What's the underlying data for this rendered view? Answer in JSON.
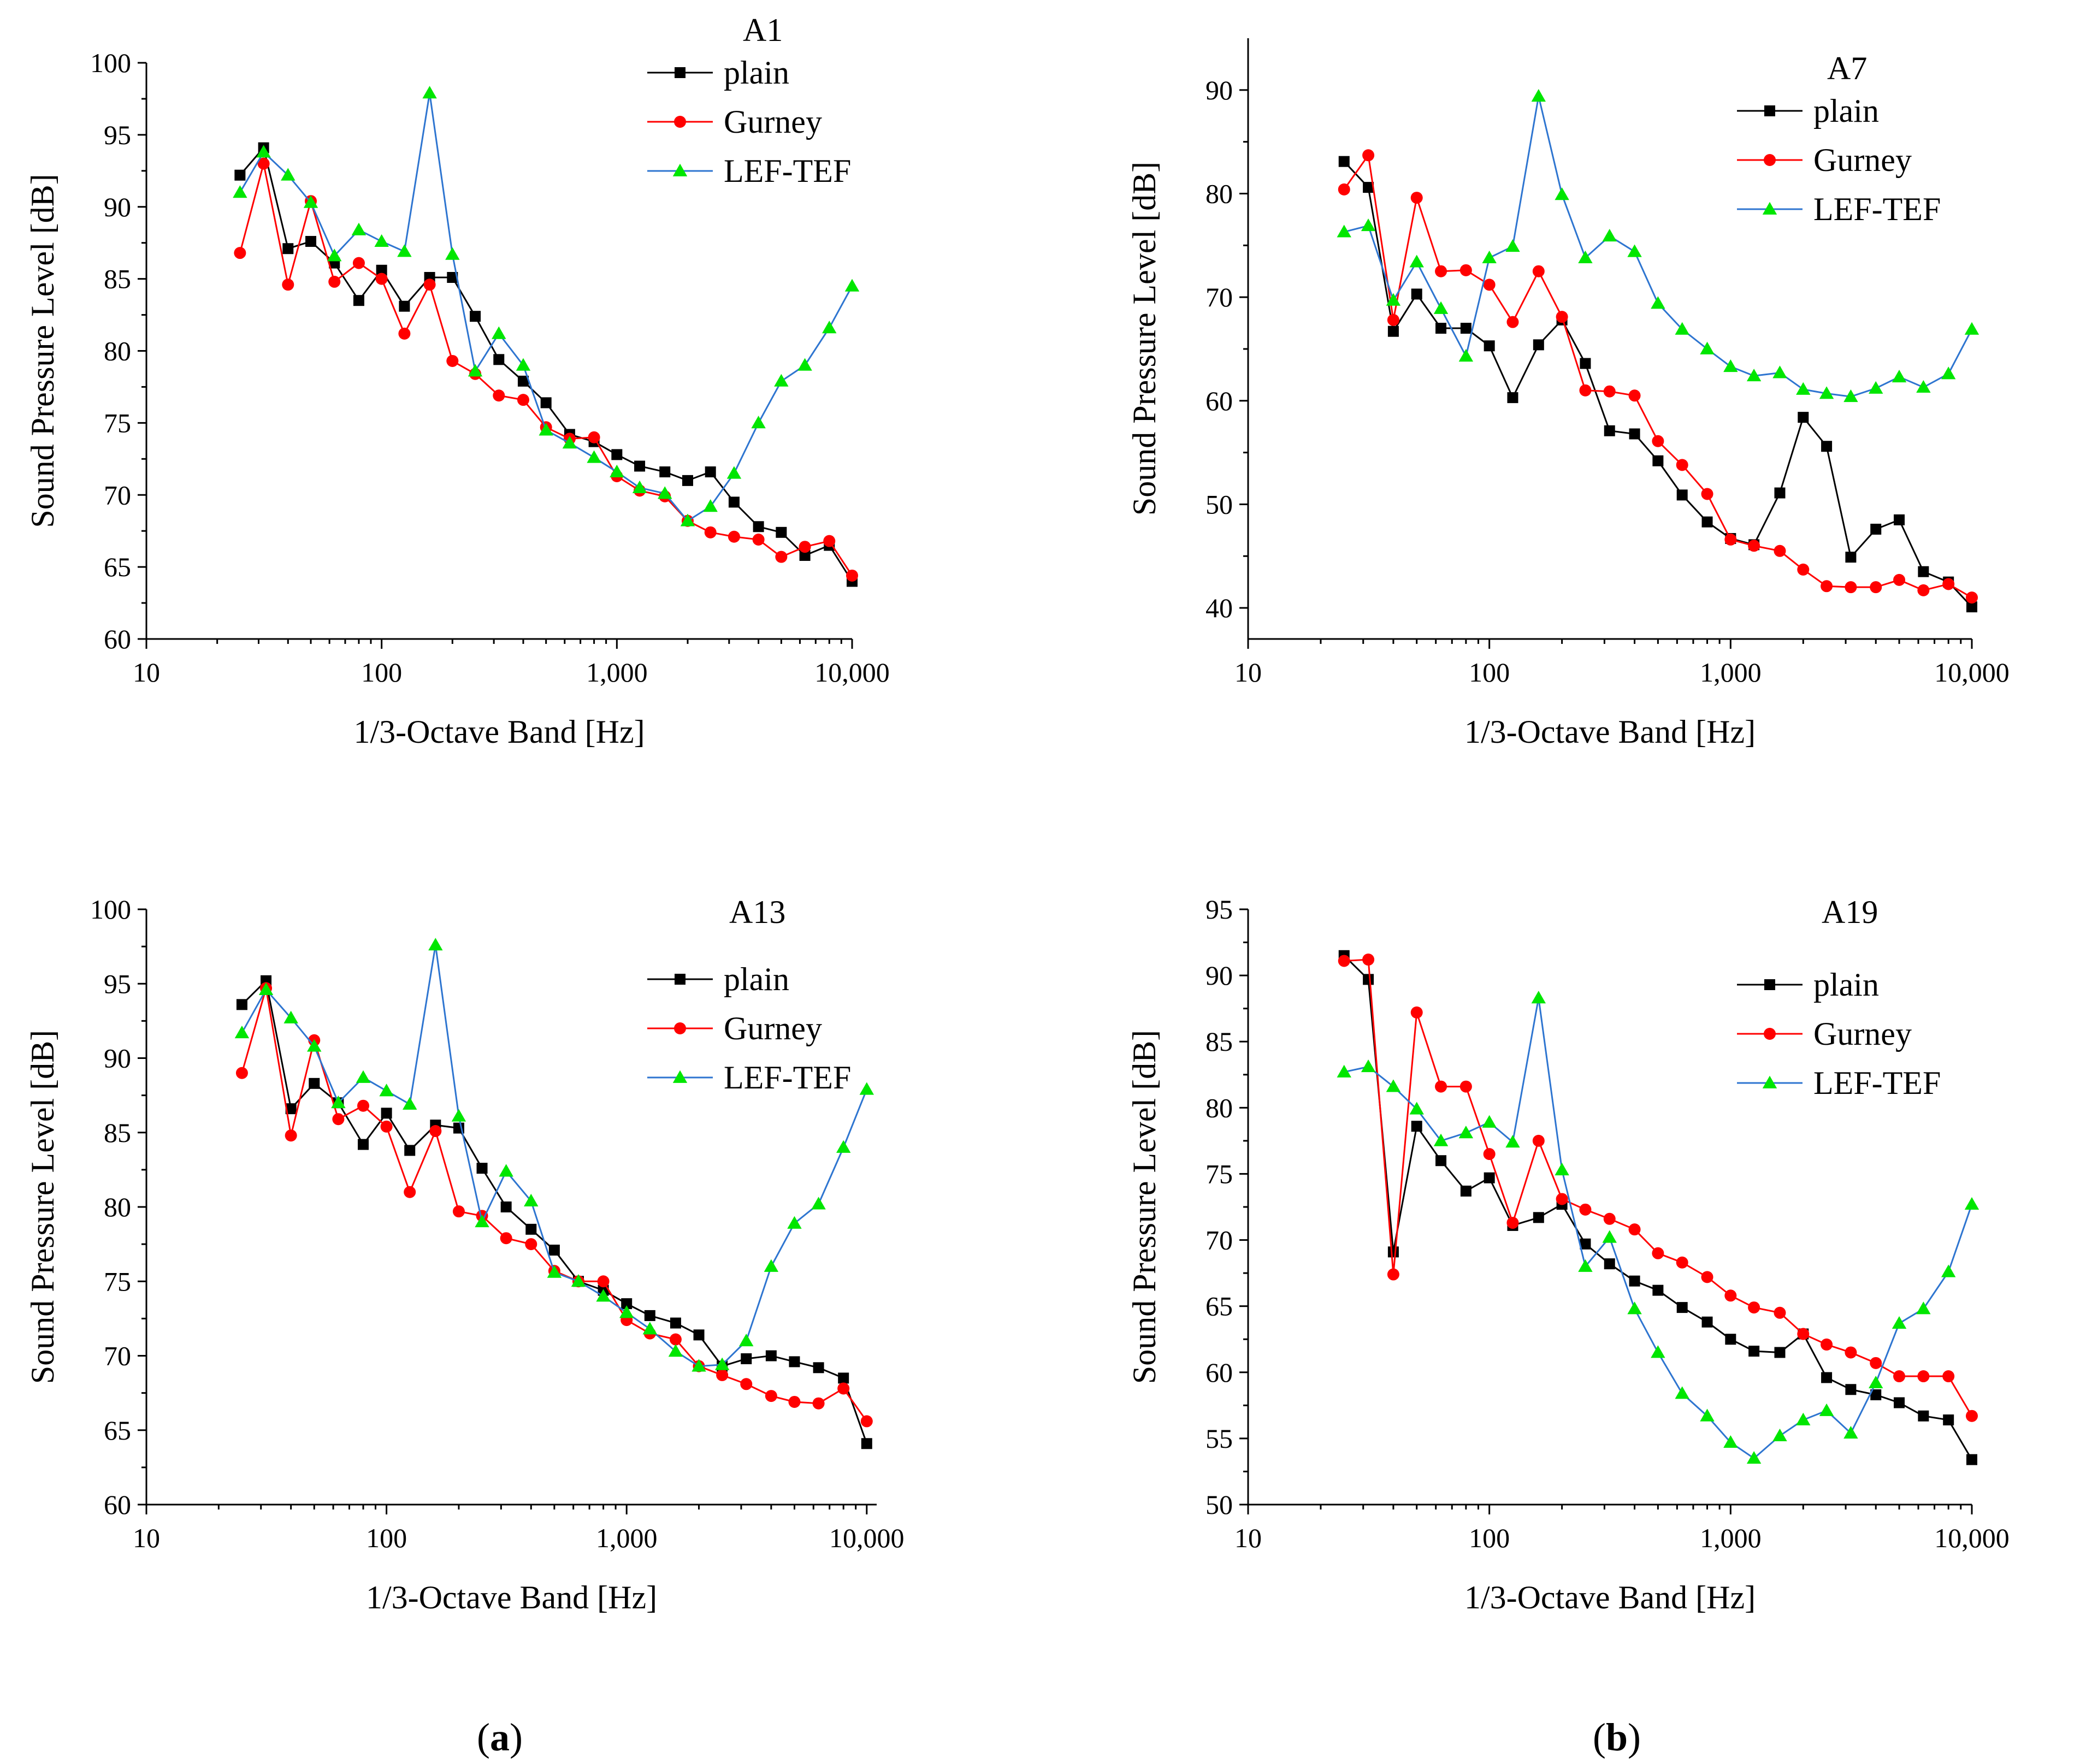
{
  "chart_data": [
    {
      "type": "line",
      "title": "A1",
      "xlabel": "1/3-Octave Band [Hz]",
      "ylabel": "Sound Pressure Level [dB]",
      "xscale": "log",
      "xlim": [
        10,
        10000
      ],
      "ylim": [
        60,
        100
      ],
      "xticks": [
        10,
        100,
        1000,
        10000
      ],
      "xtick_labels": [
        "10",
        "100",
        "1,000",
        "10,000"
      ],
      "yticks": [
        60,
        65,
        70,
        75,
        80,
        85,
        90,
        95,
        100
      ],
      "legend_position": "top-right",
      "x": [
        25,
        31.5,
        40,
        50,
        63,
        80,
        100,
        125,
        160,
        200,
        250,
        315,
        400,
        500,
        630,
        800,
        1000,
        1250,
        1600,
        2000,
        2500,
        3150,
        4000,
        5000,
        6300,
        8000,
        10000
      ],
      "series": [
        {
          "name": "plain",
          "color": "#000000",
          "marker": "square",
          "values": [
            92.2,
            94.1,
            87.1,
            87.6,
            86.1,
            83.5,
            85.6,
            83.1,
            85.1,
            85.1,
            82.4,
            79.4,
            77.9,
            76.4,
            74.2,
            73.7,
            72.8,
            72.0,
            71.6,
            71.0,
            71.6,
            69.5,
            67.8,
            67.4,
            65.8,
            66.5,
            64.0
          ]
        },
        {
          "name": "Gurney",
          "color": "#ff0000",
          "marker": "circle",
          "values": [
            86.8,
            93.0,
            84.6,
            90.4,
            84.8,
            86.1,
            85.0,
            81.2,
            84.6,
            79.3,
            78.4,
            76.9,
            76.6,
            74.7,
            73.9,
            74.0,
            71.3,
            70.3,
            69.9,
            68.2,
            67.4,
            67.1,
            66.9,
            65.7,
            66.4,
            66.8,
            64.4
          ]
        },
        {
          "name": "LEF-TEF",
          "color": "#2e75d0",
          "marker": "triangle",
          "values": [
            91.0,
            93.8,
            92.2,
            90.3,
            86.6,
            88.4,
            87.6,
            86.9,
            97.9,
            86.7,
            78.6,
            81.2,
            79.0,
            74.5,
            73.6,
            72.6,
            71.6,
            70.5,
            70.1,
            68.2,
            69.2,
            71.5,
            75.0,
            77.9,
            79.0,
            81.6,
            84.5
          ]
        }
      ]
    },
    {
      "type": "line",
      "title": "A7",
      "xlabel": "1/3-Octave Band [Hz]",
      "ylabel": "Sound Pressure Level [dB]",
      "xscale": "log",
      "xlim": [
        10,
        10000
      ],
      "ylim": [
        37,
        95
      ],
      "xticks": [
        10,
        100,
        1000,
        10000
      ],
      "xtick_labels": [
        "10",
        "100",
        "1,000",
        "10,000"
      ],
      "yticks": [
        40,
        50,
        60,
        70,
        80,
        90
      ],
      "legend_position": "top-right",
      "x": [
        25,
        31.5,
        40,
        50,
        63,
        80,
        100,
        125,
        160,
        200,
        250,
        315,
        400,
        500,
        630,
        800,
        1000,
        1250,
        1600,
        2000,
        2500,
        3150,
        4000,
        5000,
        6300,
        8000,
        10000
      ],
      "series": [
        {
          "name": "plain",
          "color": "#000000",
          "marker": "square",
          "values": [
            83.1,
            80.6,
            66.7,
            70.3,
            67.0,
            67.0,
            65.3,
            60.3,
            65.4,
            67.8,
            63.6,
            57.1,
            56.8,
            54.2,
            50.9,
            48.3,
            46.7,
            46.1,
            51.1,
            58.4,
            55.6,
            44.9,
            47.6,
            48.5,
            43.5,
            42.5,
            40.1
          ]
        },
        {
          "name": "Gurney",
          "color": "#ff0000",
          "marker": "circle",
          "values": [
            80.4,
            83.7,
            67.8,
            79.6,
            72.5,
            72.6,
            71.2,
            67.6,
            72.5,
            68.1,
            61.0,
            60.9,
            60.5,
            56.1,
            53.8,
            51.0,
            46.6,
            46.0,
            45.5,
            43.7,
            42.1,
            42.0,
            42.0,
            42.7,
            41.7,
            42.3,
            41.0
          ]
        },
        {
          "name": "LEF-TEF",
          "color": "#2e75d0",
          "marker": "triangle",
          "values": [
            76.3,
            76.9,
            69.7,
            73.4,
            68.9,
            64.3,
            73.8,
            74.9,
            89.4,
            79.9,
            73.8,
            75.9,
            74.4,
            69.4,
            66.9,
            65.0,
            63.3,
            62.4,
            62.7,
            61.1,
            60.7,
            60.4,
            61.2,
            62.3,
            61.3,
            62.6,
            66.9
          ]
        }
      ]
    },
    {
      "type": "line",
      "title": "A13",
      "xlabel": "1/3-Octave Band [Hz]",
      "ylabel": "Sound Pressure Level [dB]",
      "xscale": "log",
      "xlim": [
        10,
        11000
      ],
      "ylim": [
        60,
        100
      ],
      "xticks": [
        10,
        100,
        1000,
        10000
      ],
      "xtick_labels": [
        "10",
        "100",
        "1,000",
        "10,000"
      ],
      "yticks": [
        60,
        65,
        70,
        75,
        80,
        85,
        90,
        95,
        100
      ],
      "legend_position": "top-right",
      "x": [
        25,
        31.5,
        40,
        50,
        63,
        80,
        100,
        125,
        160,
        200,
        250,
        315,
        400,
        500,
        630,
        800,
        1000,
        1250,
        1600,
        2000,
        2500,
        3150,
        4000,
        5000,
        6300,
        8000,
        10000
      ],
      "series": [
        {
          "name": "plain",
          "color": "#000000",
          "marker": "square",
          "values": [
            93.6,
            95.2,
            86.6,
            88.3,
            87.0,
            84.2,
            86.3,
            83.8,
            85.5,
            85.3,
            82.6,
            80.0,
            78.5,
            77.1,
            75.0,
            74.4,
            73.5,
            72.7,
            72.2,
            71.4,
            69.3,
            69.8,
            70.0,
            69.6,
            69.2,
            68.5,
            64.1
          ]
        },
        {
          "name": "Gurney",
          "color": "#ff0000",
          "marker": "circle",
          "values": [
            89.0,
            94.7,
            84.8,
            91.2,
            85.9,
            86.8,
            85.4,
            81.0,
            85.1,
            79.7,
            79.4,
            77.9,
            77.5,
            75.7,
            75.0,
            75.0,
            72.4,
            71.5,
            71.1,
            69.3,
            68.7,
            68.1,
            67.3,
            66.9,
            66.8,
            67.8,
            65.6
          ]
        },
        {
          "name": "LEF-TEF",
          "color": "#2e75d0",
          "marker": "triangle",
          "values": [
            91.7,
            94.6,
            92.7,
            90.8,
            87.0,
            88.7,
            87.8,
            86.9,
            97.6,
            86.1,
            79.0,
            82.4,
            80.4,
            75.6,
            75.0,
            74.0,
            72.9,
            71.8,
            70.3,
            69.3,
            69.4,
            71.0,
            76.0,
            78.9,
            80.2,
            84.0,
            87.9
          ]
        }
      ]
    },
    {
      "type": "line",
      "title": "A19",
      "xlabel": "1/3-Octave Band [Hz]",
      "ylabel": "Sound Pressure Level [dB]",
      "xscale": "log",
      "xlim": [
        10,
        10000
      ],
      "ylim": [
        50,
        95
      ],
      "xticks": [
        10,
        100,
        1000,
        10000
      ],
      "xtick_labels": [
        "10",
        "100",
        "1,000",
        "10,000"
      ],
      "yticks": [
        50,
        55,
        60,
        65,
        70,
        75,
        80,
        85,
        90,
        95
      ],
      "legend_position": "top-right",
      "x": [
        25,
        31.5,
        40,
        50,
        63,
        80,
        100,
        125,
        160,
        200,
        250,
        315,
        400,
        500,
        630,
        800,
        1000,
        1250,
        1600,
        2000,
        2500,
        3150,
        4000,
        5000,
        6300,
        8000,
        10000
      ],
      "series": [
        {
          "name": "plain",
          "color": "#000000",
          "marker": "square",
          "values": [
            91.5,
            89.7,
            69.1,
            78.6,
            76.0,
            73.7,
            74.7,
            71.1,
            71.7,
            72.7,
            69.7,
            68.2,
            66.9,
            66.2,
            64.9,
            63.8,
            62.5,
            61.6,
            61.5,
            62.9,
            59.6,
            58.7,
            58.3,
            57.7,
            56.7,
            56.4,
            53.4
          ]
        },
        {
          "name": "Gurney",
          "color": "#ff0000",
          "marker": "circle",
          "values": [
            91.1,
            91.2,
            67.4,
            87.2,
            81.6,
            81.6,
            76.5,
            71.3,
            77.5,
            73.1,
            72.3,
            71.6,
            70.8,
            69.0,
            68.3,
            67.2,
            65.8,
            64.9,
            64.5,
            62.9,
            62.1,
            61.5,
            60.7,
            59.7,
            59.7,
            59.7,
            56.7
          ]
        },
        {
          "name": "LEF-TEF",
          "color": "#2e75d0",
          "marker": "triangle",
          "values": [
            82.7,
            83.1,
            81.6,
            79.9,
            77.5,
            78.1,
            78.9,
            77.4,
            88.3,
            75.3,
            68.0,
            70.2,
            64.8,
            61.5,
            58.4,
            56.7,
            54.7,
            53.5,
            55.2,
            56.4,
            57.1,
            55.4,
            59.2,
            63.7,
            64.8,
            67.6,
            72.7
          ]
        }
      ]
    }
  ],
  "captions": [
    {
      "open": "(",
      "letter": "a",
      "close": ")"
    },
    {
      "open": "(",
      "letter": "b",
      "close": ")"
    }
  ]
}
